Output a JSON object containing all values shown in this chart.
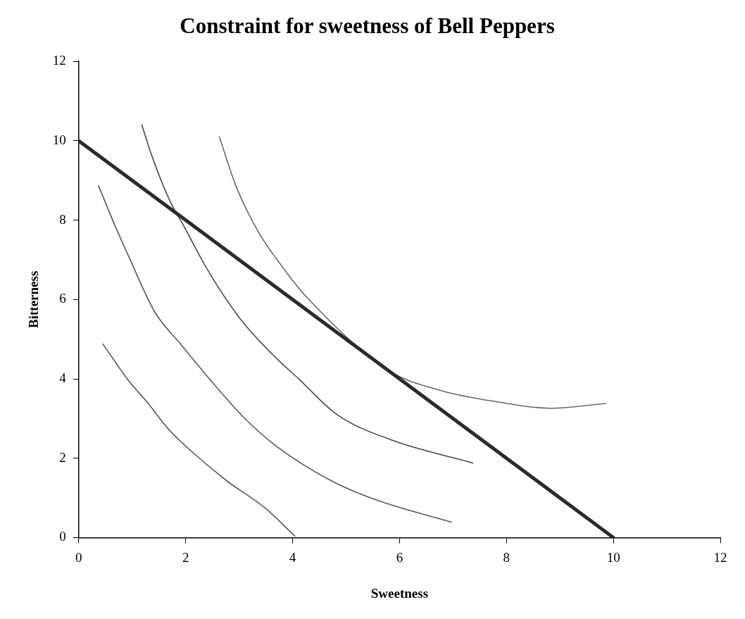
{
  "chart_data": {
    "type": "line",
    "title": "Constraint for sweetness of Bell Peppers",
    "xlabel": "Sweetness",
    "ylabel": "Bitterness",
    "xlim": [
      0,
      12
    ],
    "xticks": [
      0,
      2,
      4,
      6,
      8,
      10,
      12
    ],
    "ylim": [
      0,
      12
    ],
    "yticks": [
      0,
      2,
      4,
      6,
      8,
      10,
      12
    ],
    "grid": false,
    "legend": false,
    "marker": "none",
    "line_style": "solid",
    "series": [
      {
        "color": "#2b2b2b",
        "x": [
          0,
          10
        ],
        "values": [
          10,
          0
        ]
      },
      {
        "color": "#5a5a5a",
        "x": [
          0.45,
          0.93,
          1.3,
          1.66,
          2.03,
          2.76,
          3.49,
          4.04
        ],
        "values": [
          4.88,
          3.96,
          3.38,
          2.76,
          2.27,
          1.44,
          0.74,
          0.04
        ]
      },
      {
        "color": "#5a5a5a",
        "x": [
          0.37,
          0.66,
          0.96,
          1.42,
          1.91,
          2.52,
          3.1,
          3.7,
          4.7,
          5.56,
          6.97
        ],
        "values": [
          8.87,
          7.92,
          7.01,
          5.69,
          4.87,
          3.88,
          3.01,
          2.3,
          1.45,
          0.95,
          0.39
        ]
      },
      {
        "color": "#4a4a4a",
        "x": [
          1.18,
          1.36,
          1.7,
          1.97,
          2.4,
          3.01,
          3.62,
          4.13,
          4.83,
          5.87,
          7.37
        ],
        "values": [
          10.4,
          9.65,
          8.5,
          7.84,
          6.77,
          5.53,
          4.62,
          3.98,
          3.1,
          2.45,
          1.88
        ]
      },
      {
        "color": "#6a6a6a",
        "x": [
          2.63,
          2.95,
          3.37,
          3.86,
          4.27,
          5.81,
          6.79,
          7.84,
          8.81,
          9.86
        ],
        "values": [
          10.1,
          8.83,
          7.68,
          6.73,
          6.05,
          4.2,
          3.7,
          3.42,
          3.26,
          3.38
        ]
      }
    ]
  }
}
